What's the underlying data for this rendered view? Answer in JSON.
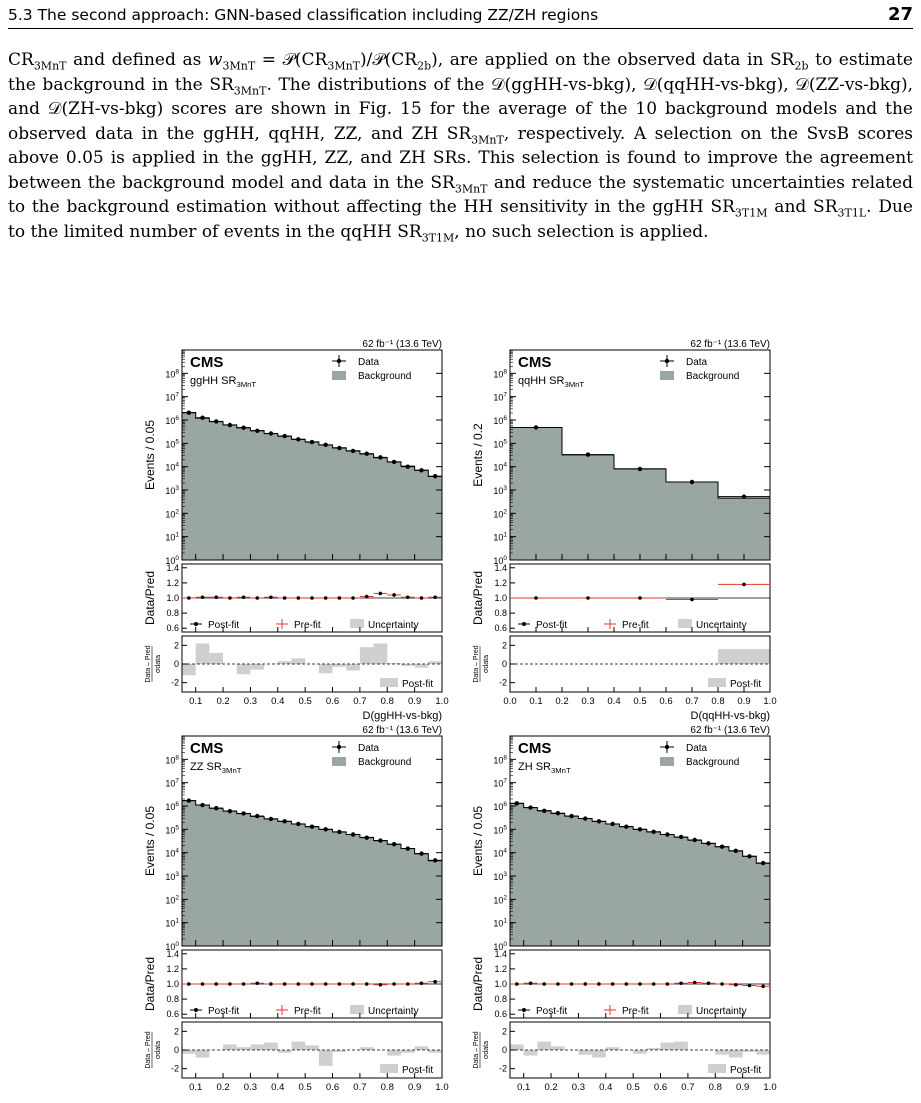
{
  "header": {
    "section": "5.3   The second approach: GNN-based classification including ZZ/ZH regions",
    "page_number": "27"
  },
  "paragraph": {
    "s1": "CR",
    "s1_sub": "3MnT",
    "s2": " and defined as ",
    "s3": "w",
    "s3_sub": "3MnT",
    "s4": " = 𝒫(CR",
    "s4_sub": "3MnT",
    "s5": ")/𝒫(CR",
    "s5_sub": "2b",
    "s6": "), are applied on the observed data in SR",
    "s6_sub": "2b",
    "s7": " to estimate the background in the SR",
    "s7_sub": "3MnT",
    "s8": ". The distributions of the 𝒟(ggHH-vs-bkg), 𝒟(qqHH-vs-bkg), 𝒟(ZZ-vs-bkg), and 𝒟(ZH-vs-bkg) scores are shown in Fig. 15 for the average of the 10 background models and the observed data in the ggHH, qqHH, ZZ, and ZH SR",
    "s8_sub": "3MnT",
    "s9": ", respectively. A selection on the SvsB scores above 0.05 is applied in the ggHH, ZZ, and ZH SRs. This selection is found to improve the agreement between the background model and data in the SR",
    "s9_sub": "3MnT",
    "s10": " and reduce the systematic uncertainties related to the background estimation without affecting the HH sensitivity in the ggHH SR",
    "s10_sub": "3T1M",
    "s11": " and SR",
    "s11_sub": "3T1L",
    "s12": ". Due to the limited number of events in the qqHH SR",
    "s12_sub": "3T1M",
    "s13": ", no such selection is applied."
  },
  "figure": {
    "lumi": "62 fb⁻¹ (13.6 TeV)",
    "cms": "CMS",
    "legend_data": "Data",
    "legend_background": "Background",
    "legend_postfit": "Post-fit",
    "legend_prefit": "Pre-fit",
    "legend_uncertainty": "Uncertainty",
    "pull_label": "Post-fit",
    "ratio_ylabel": "Data/Pred",
    "pull_ylabel_num": "Data – Pred",
    "pull_ylabel_den": "σdata",
    "colors": {
      "background": "#9aa6a3",
      "data": "#000000",
      "prefit": "#e8332a",
      "uncertainty": "#cfcfcf"
    }
  },
  "chart_data": [
    {
      "type": "bar",
      "region": "ggHH SR3MnT",
      "ylabel": "Events / 0.05",
      "xlabel": "D(ggHH-vs-bkg)",
      "yscale": "log",
      "ylim": [
        1,
        1000000000.0
      ],
      "xlim": [
        0.05,
        1.0
      ],
      "x_ticks": [
        "0.1",
        "0.2",
        "0.3",
        "0.4",
        "0.5",
        "0.6",
        "0.7",
        "0.8",
        "0.9",
        "1.0"
      ],
      "bin_edges": [
        0.05,
        0.1,
        0.15,
        0.2,
        0.25,
        0.3,
        0.35,
        0.4,
        0.45,
        0.5,
        0.55,
        0.6,
        0.65,
        0.7,
        0.75,
        0.8,
        0.85,
        0.9,
        0.95,
        1.0
      ],
      "background": [
        2100000.0,
        1200000.0,
        850000.0,
        620000.0,
        460000.0,
        350000.0,
        260000.0,
        200000.0,
        150000.0,
        115000.0,
        85000.0,
        65000.0,
        48000.0,
        35000.0,
        24000.0,
        16000.0,
        10500.0,
        7000.0,
        3800.0
      ],
      "data": [
        2050000.0,
        1250000.0,
        870000.0,
        610000.0,
        470000.0,
        345000.0,
        265000.0,
        205000.0,
        148000.0,
        113000.0,
        86000.0,
        63000.0,
        47000.0,
        36000.0,
        25000.0,
        16000.0,
        10000.0,
        7000.0,
        3900.0
      ],
      "ratio_postfit": [
        1.0,
        1.01,
        1.01,
        1.0,
        1.01,
        1.0,
        1.01,
        1.0,
        1.0,
        1.0,
        1.0,
        1.0,
        1.0,
        1.02,
        1.06,
        1.04,
        1.01,
        1.0,
        1.01
      ],
      "pull": [
        -1.2,
        2.2,
        1.2,
        0,
        -1.1,
        -0.6,
        0,
        0.3,
        0.6,
        0,
        -1.0,
        -0.3,
        -0.7,
        1.8,
        2.2,
        0.1,
        -0.2,
        -0.4,
        0.3
      ]
    },
    {
      "type": "bar",
      "region": "qqHH SR3MnT",
      "ylabel": "Events / 0.2",
      "xlabel": "D(qqHH-vs-bkg)",
      "yscale": "log",
      "ylim": [
        1,
        1000000000.0
      ],
      "xlim": [
        0.0,
        1.0
      ],
      "x_ticks": [
        "0.0",
        "0.1",
        "0.2",
        "0.3",
        "0.4",
        "0.5",
        "0.6",
        "0.7",
        "0.8",
        "0.9",
        "1.0"
      ],
      "bin_edges": [
        0.0,
        0.2,
        0.4,
        0.6,
        0.8,
        1.0
      ],
      "background": [
        480000.0,
        32000.0,
        8000.0,
        2200.0,
        450.0
      ],
      "data": [
        480000.0,
        33000.0,
        8000.0,
        2200.0,
        520.0
      ],
      "ratio_postfit": [
        1.0,
        1.0,
        1.0,
        0.98,
        1.18
      ],
      "pull": [
        0,
        0,
        0,
        0,
        1.6
      ]
    },
    {
      "type": "bar",
      "region": "ZZ SR3MnT",
      "ylabel": "Events / 0.05",
      "xlabel": "D(ZZ-vs-bkg)",
      "yscale": "log",
      "ylim": [
        1,
        1000000000.0
      ],
      "xlim": [
        0.05,
        1.0
      ],
      "x_ticks": [
        "0.1",
        "0.2",
        "0.3",
        "0.4",
        "0.5",
        "0.6",
        "0.7",
        "0.8",
        "0.9",
        "1.0"
      ],
      "bin_edges": [
        0.05,
        0.1,
        0.15,
        0.2,
        0.25,
        0.3,
        0.35,
        0.4,
        0.45,
        0.5,
        0.55,
        0.6,
        0.65,
        0.7,
        0.75,
        0.8,
        0.85,
        0.9,
        0.95,
        1.0
      ],
      "background": [
        1700000.0,
        1100000.0,
        800000.0,
        610000.0,
        470000.0,
        360000.0,
        280000.0,
        220000.0,
        170000.0,
        130000.0,
        100000.0,
        78000.0,
        60000.0,
        45000.0,
        33000.0,
        23000.0,
        15000.0,
        9000.0,
        4500.0
      ],
      "data": [
        1700000.0,
        1100000.0,
        810000.0,
        600000.0,
        480000.0,
        370000.0,
        280000.0,
        220000.0,
        170000.0,
        130000.0,
        100000.0,
        77000.0,
        60000.0,
        44000.0,
        33000.0,
        23000.0,
        15000.0,
        9100.0,
        4700.0
      ],
      "ratio_postfit": [
        1.0,
        1.0,
        1.0,
        1.0,
        1.0,
        1.01,
        1.0,
        1.0,
        1.0,
        1.0,
        1.0,
        1.0,
        1.0,
        1.0,
        0.99,
        1.0,
        1.0,
        1.01,
        1.03
      ],
      "pull": [
        -0.4,
        -0.8,
        0,
        0.6,
        0.3,
        0.6,
        0.8,
        -0.3,
        0.9,
        0.5,
        -1.7,
        -0.2,
        0,
        0.3,
        0,
        -0.6,
        -0.3,
        0.4,
        -0.3
      ]
    },
    {
      "type": "bar",
      "region": "ZH SR3MnT",
      "ylabel": "Events / 0.05",
      "xlabel": "D(ZH-vs-bkg)",
      "yscale": "log",
      "ylim": [
        1,
        1000000000.0
      ],
      "xlim": [
        0.05,
        1.0
      ],
      "x_ticks": [
        "0.1",
        "0.2",
        "0.3",
        "0.4",
        "0.5",
        "0.6",
        "0.7",
        "0.8",
        "0.9",
        "1.0"
      ],
      "bin_edges": [
        0.05,
        0.1,
        0.15,
        0.2,
        0.25,
        0.3,
        0.35,
        0.4,
        0.45,
        0.5,
        0.55,
        0.6,
        0.65,
        0.7,
        0.75,
        0.8,
        0.85,
        0.9,
        0.95,
        1.0
      ],
      "background": [
        1300000.0,
        850000.0,
        630000.0,
        480000.0,
        370000.0,
        290000.0,
        220000.0,
        170000.0,
        130000.0,
        100000.0,
        78000.0,
        60000.0,
        46000.0,
        34000.0,
        25000.0,
        18000.0,
        12000.0,
        7000.0,
        3500.0
      ],
      "data": [
        1300000.0,
        860000.0,
        620000.0,
        490000.0,
        370000.0,
        290000.0,
        220000.0,
        170000.0,
        130000.0,
        100000.0,
        78000.0,
        60000.0,
        47000.0,
        35000.0,
        25000.0,
        18000.0,
        12000.0,
        7000.0,
        3600.0
      ],
      "ratio_postfit": [
        1.0,
        1.01,
        1.0,
        1.0,
        1.0,
        1.0,
        1.0,
        1.0,
        1.0,
        1.0,
        1.0,
        1.0,
        1.01,
        1.02,
        1.01,
        1.0,
        0.99,
        0.98,
        0.97
      ],
      "pull": [
        0.6,
        -0.6,
        0.9,
        0.4,
        0,
        -0.5,
        -0.8,
        0.3,
        0,
        -0.4,
        0.2,
        0.8,
        0.9,
        0,
        0,
        -0.5,
        -0.8,
        -0.2,
        -0.5
      ]
    }
  ]
}
